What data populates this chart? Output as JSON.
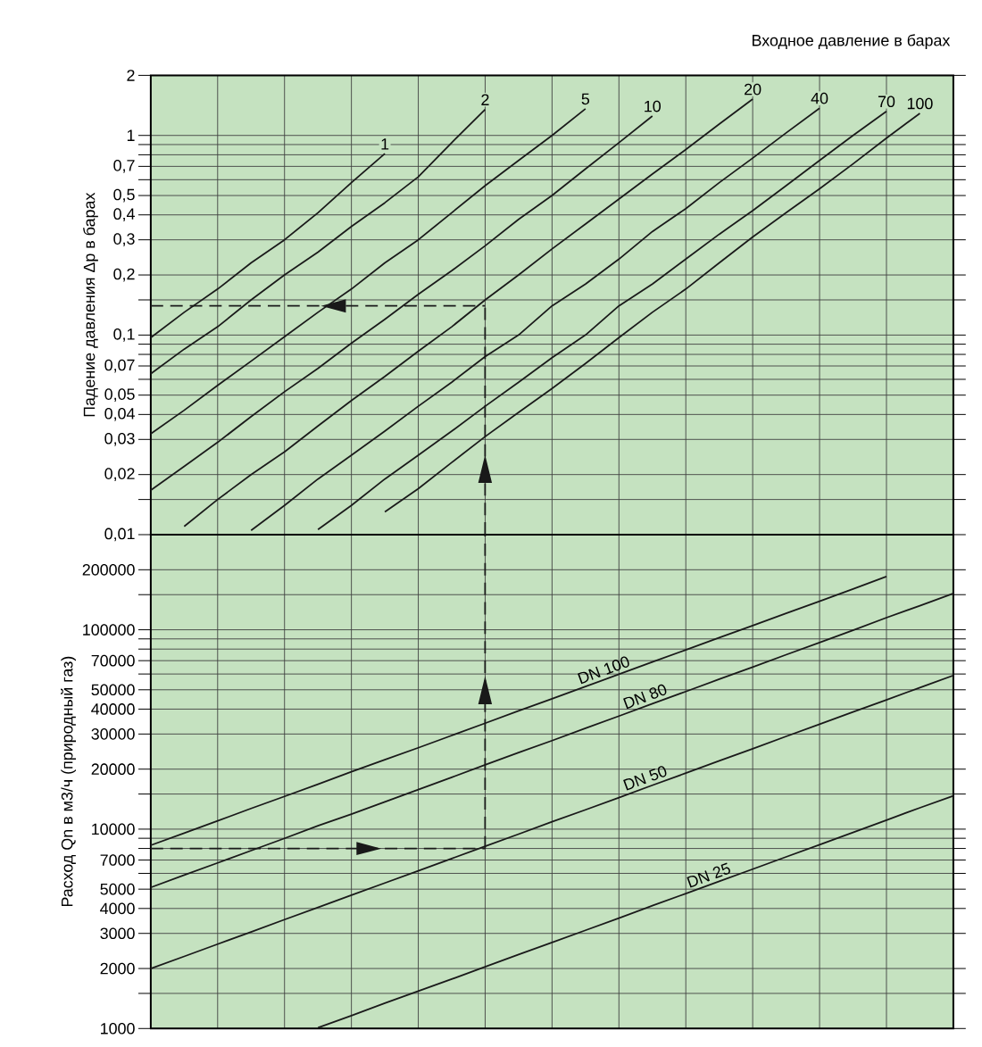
{
  "chart_data": [
    {
      "type": "line",
      "xlabel": "Входное давление в барах",
      "ylabel": "Падение давления Δp в барах",
      "log": "y",
      "grid": true,
      "tick_labels": "y",
      "categories": [
        null,
        null,
        null,
        null,
        null,
        null,
        null,
        null,
        null,
        null,
        null,
        null,
        null,
        null,
        null,
        null,
        null,
        null,
        null,
        null,
        null,
        null,
        null,
        null,
        null
      ],
      "ylim": [
        0.01,
        2
      ],
      "yticks": [
        {
          "value": 0.01,
          "label": "0,01"
        },
        {
          "value": 0.015,
          "label": null
        },
        {
          "value": 0.02,
          "label": "0,02"
        },
        {
          "value": 0.03,
          "label": "0,03"
        },
        {
          "value": 0.04,
          "label": "0,04"
        },
        {
          "value": 0.05,
          "label": "0,05"
        },
        {
          "value": 0.06,
          "label": null
        },
        {
          "value": 0.07,
          "label": "0,07"
        },
        {
          "value": 0.08,
          "label": null
        },
        {
          "value": 0.09,
          "label": null
        },
        {
          "value": 0.1,
          "label": "0,1"
        },
        {
          "value": 0.15,
          "label": null
        },
        {
          "value": 0.2,
          "label": "0,2"
        },
        {
          "value": 0.3,
          "label": "0,3"
        },
        {
          "value": 0.4,
          "label": "0,4"
        },
        {
          "value": 0.5,
          "label": "0,5"
        },
        {
          "value": 0.6,
          "label": null
        },
        {
          "value": 0.7,
          "label": "0,7"
        },
        {
          "value": 0.8,
          "label": null
        },
        {
          "value": 0.9,
          "label": null
        },
        1,
        2
      ],
      "series": [
        {
          "name": "1",
          "color": "#1a1a1a",
          "values": [
            0.097,
            0.13,
            0.17,
            0.23,
            0.3,
            0.41,
            0.58,
            0.81,
            null,
            null,
            null,
            null,
            null,
            null,
            null,
            null,
            null,
            null,
            null,
            null,
            null,
            null,
            null,
            null,
            null
          ]
        },
        {
          "name": "2",
          "color": "#1a1a1a",
          "values": [
            0.064,
            0.085,
            0.11,
            0.15,
            0.2,
            0.26,
            0.35,
            0.46,
            0.62,
            0.92,
            1.35,
            null,
            null,
            null,
            null,
            null,
            null,
            null,
            null,
            null,
            null,
            null,
            null,
            null,
            null
          ]
        },
        {
          "name": "5",
          "color": "#1a1a1a",
          "values": [
            0.032,
            0.042,
            0.056,
            0.074,
            0.098,
            0.13,
            0.17,
            0.23,
            0.3,
            0.41,
            0.56,
            0.75,
            1.0,
            1.36,
            null,
            null,
            null,
            null,
            null,
            null,
            null,
            null,
            null,
            null,
            null
          ]
        },
        {
          "name": "10",
          "color": "#1a1a1a",
          "values": [
            0.0167,
            0.022,
            0.029,
            0.039,
            0.052,
            0.068,
            0.091,
            0.12,
            0.16,
            0.21,
            0.28,
            0.38,
            0.5,
            0.68,
            0.92,
            1.25,
            null,
            null,
            null,
            null,
            null,
            null,
            null,
            null,
            null
          ]
        },
        {
          "name": "20",
          "color": "#1a1a1a",
          "values": [
            null,
            0.011,
            0.015,
            0.02,
            0.026,
            0.035,
            0.047,
            0.062,
            0.083,
            0.11,
            0.15,
            0.2,
            0.27,
            0.36,
            0.48,
            0.64,
            0.85,
            1.14,
            1.52,
            null,
            null,
            null,
            null,
            null,
            null
          ]
        },
        {
          "name": "40",
          "color": "#1a1a1a",
          "values": [
            null,
            null,
            null,
            0.0105,
            0.014,
            0.019,
            0.025,
            0.033,
            0.044,
            0.058,
            0.078,
            0.1,
            0.14,
            0.18,
            0.24,
            0.33,
            0.43,
            0.58,
            0.77,
            1.03,
            1.37,
            null,
            null,
            null,
            null
          ]
        },
        {
          "name": "70",
          "color": "#1a1a1a",
          "values": [
            null,
            null,
            null,
            null,
            null,
            0.0106,
            0.014,
            0.019,
            0.025,
            0.033,
            0.044,
            0.058,
            0.077,
            0.1,
            0.14,
            0.18,
            0.24,
            0.32,
            0.42,
            0.56,
            0.75,
            1.0,
            1.32,
            null,
            null
          ]
        },
        {
          "name": "100",
          "color": "#1a1a1a",
          "values": [
            null,
            null,
            null,
            null,
            null,
            null,
            null,
            0.013,
            0.017,
            0.023,
            0.031,
            0.041,
            0.054,
            0.072,
            0.097,
            0.13,
            0.17,
            0.23,
            0.31,
            0.41,
            0.54,
            0.72,
            0.97,
            1.29,
            null
          ]
        },
        {
          "color": "#1a1a1a",
          "line_style": "dashed",
          "values": [
            0.14,
            0.14,
            0.14,
            0.14,
            0.14,
            0.14,
            0.14,
            0.14,
            0.14,
            0.14,
            0.14,
            null,
            null,
            null,
            null,
            null,
            null,
            null,
            null,
            null,
            null,
            null,
            null,
            null,
            null
          ]
        }
      ]
    },
    {
      "type": "line",
      "ylabel": "Расход  Qn в м3/ч (природный газ)",
      "log": "y",
      "grid": true,
      "tick_labels": "y",
      "categories": [
        null,
        null,
        null,
        null,
        null,
        null,
        null,
        null,
        null,
        null,
        null,
        null,
        null,
        null,
        null,
        null,
        null,
        null,
        null,
        null,
        null,
        null,
        null,
        null,
        null
      ],
      "ylim": [
        1000,
        300000
      ],
      "yticks": [
        1000,
        {
          "value": 1500,
          "label": null
        },
        2000,
        3000,
        4000,
        5000,
        {
          "value": 6000,
          "label": null
        },
        7000,
        {
          "value": 8000,
          "label": null
        },
        {
          "value": 9000,
          "label": null
        },
        10000,
        {
          "value": 15000,
          "label": null
        },
        20000,
        30000,
        40000,
        50000,
        {
          "value": 60000,
          "label": null
        },
        70000,
        {
          "value": 80000,
          "label": null
        },
        {
          "value": 90000,
          "label": null
        },
        100000,
        {
          "value": 150000,
          "label": null
        },
        200000
      ],
      "series": [
        {
          "name": "DN 100",
          "color": "#1a1a1a",
          "values": [
            8300,
            9550,
            11000,
            12700,
            14600,
            16800,
            19400,
            22300,
            25600,
            29500,
            34000,
            39200,
            45100,
            51900,
            59800,
            68900,
            79300,
            91300,
            105000,
            121000,
            139000,
            160000,
            185000,
            null,
            null
          ]
        },
        {
          "name": "DN 80",
          "color": "#1a1a1a",
          "values": [
            5100,
            5880,
            6770,
            7800,
            8990,
            10400,
            11900,
            13700,
            15800,
            18200,
            21000,
            24200,
            27800,
            32100,
            36900,
            42600,
            49000,
            56500,
            65000,
            75000,
            86300,
            99400,
            115000,
            132000,
            152000
          ]
        },
        {
          "name": "DN 50",
          "color": "#1a1a1a",
          "values": [
            2000,
            2300,
            2650,
            3050,
            3520,
            4050,
            4670,
            5370,
            6180,
            7120,
            8200,
            9440,
            10900,
            12500,
            14400,
            16600,
            19100,
            22000,
            25300,
            29200,
            33600,
            38700,
            44500,
            51300,
            59000
          ]
        },
        {
          "name": "DN 25",
          "color": "#1a1a1a",
          "values": [
            null,
            null,
            null,
            null,
            null,
            1010,
            1160,
            1340,
            1540,
            1770,
            2040,
            2350,
            2700,
            3110,
            3580,
            4130,
            4750,
            5470,
            6300,
            7260,
            8360,
            9620,
            11100,
            12800,
            14700
          ]
        },
        {
          "color": "#1a1a1a",
          "line_style": "dashed",
          "values": [
            8000,
            8000,
            8000,
            8000,
            8000,
            8000,
            8000,
            8000,
            8000,
            8000,
            8000,
            null,
            null,
            null,
            null,
            null,
            null,
            null,
            null,
            null,
            null,
            null,
            null,
            null,
            null
          ]
        }
      ]
    }
  ]
}
